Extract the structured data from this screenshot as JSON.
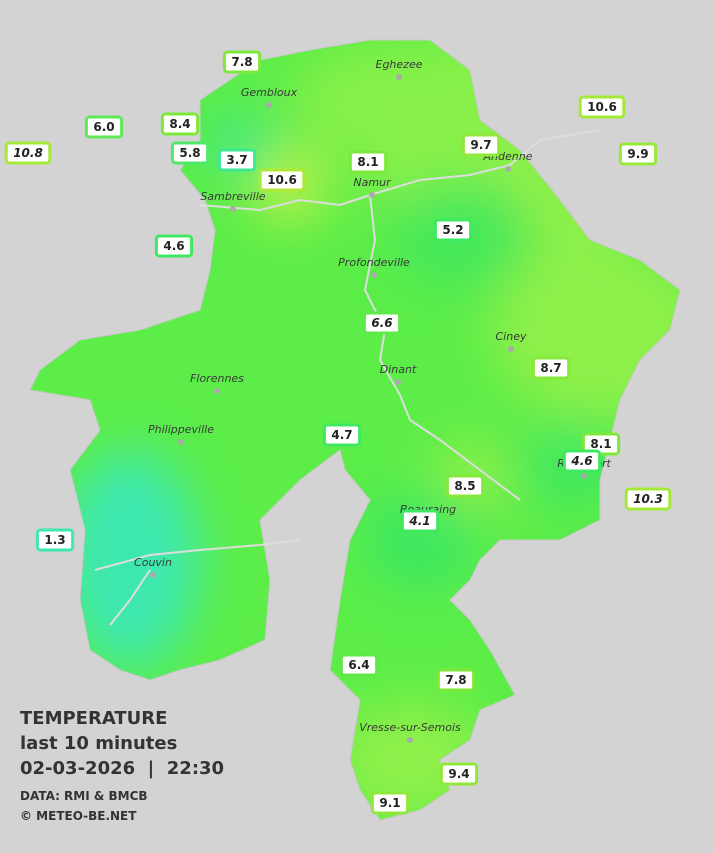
{
  "caption": {
    "title": "TEMPERATURE",
    "subtitle": "last 10 minutes",
    "datetime": "02-03-2026  |  22:30",
    "source": "DATA: RMI & BMCB",
    "credit": "© METEO-BE.NET"
  },
  "cities": [
    "Eghezee",
    "Gembloux",
    "Andenne",
    "Namur",
    "Sambreville",
    "Profondeville",
    "Ciney",
    "Dinant",
    "Florennes",
    "Philippeville",
    "Beauraing",
    "Rochefort",
    "Couvin",
    "Vresse-sur-Semois"
  ],
  "stations": [
    {
      "temp": "7.8",
      "color": "#7ee83a"
    },
    {
      "temp": "6.0",
      "color": "#5fe85a"
    },
    {
      "temp": "8.4",
      "color": "#7ee83a"
    },
    {
      "temp": "10.8",
      "color": "#a6e83a",
      "italic": true
    },
    {
      "temp": "5.8",
      "color": "#4fe86a"
    },
    {
      "temp": "3.7",
      "color": "#3ee890"
    },
    {
      "temp": "10.6",
      "color": "#b0e83a"
    },
    {
      "temp": "8.1",
      "color": "#7ee83a"
    },
    {
      "temp": "9.7",
      "color": "#92e83a"
    },
    {
      "temp": "10.6",
      "color": "#a6e83a"
    },
    {
      "temp": "9.9",
      "color": "#98e83a"
    },
    {
      "temp": "4.6",
      "color": "#3ee860"
    },
    {
      "temp": "5.2",
      "color": "#3ee860"
    },
    {
      "temp": "6.6",
      "color": "#5fe84a",
      "italic": true
    },
    {
      "temp": "8.7",
      "color": "#86e83a"
    },
    {
      "temp": "4.7",
      "color": "#3ee860"
    },
    {
      "temp": "8.1",
      "color": "#7ee83a"
    },
    {
      "temp": "4.6",
      "color": "#3ee860",
      "italic": true
    },
    {
      "temp": "8.5",
      "color": "#86e83a"
    },
    {
      "temp": "10.3",
      "color": "#a6e83a",
      "italic": true
    },
    {
      "temp": "4.1",
      "color": "#3ee860",
      "italic": true
    },
    {
      "temp": "1.3",
      "color": "#3ee8b0"
    },
    {
      "temp": "6.4",
      "color": "#5fe84a"
    },
    {
      "temp": "7.8",
      "color": "#7ee83a"
    },
    {
      "temp": "9.4",
      "color": "#92e83a"
    },
    {
      "temp": "9.1",
      "color": "#92e83a"
    }
  ]
}
